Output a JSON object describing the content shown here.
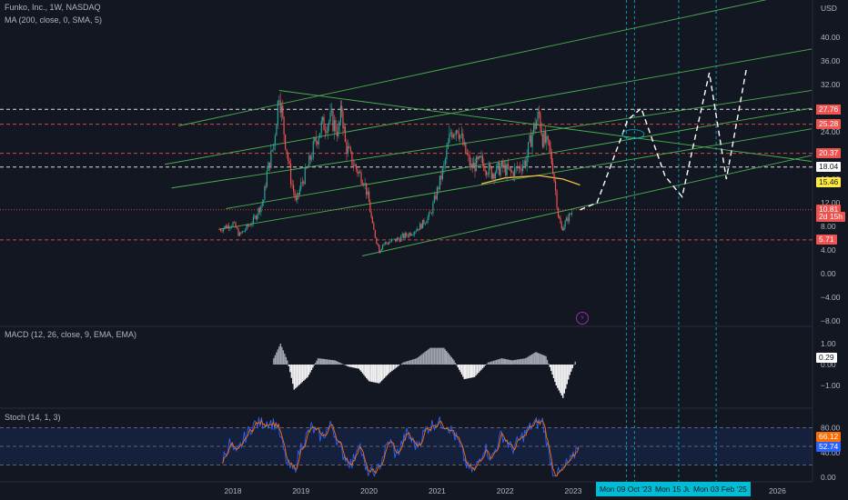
{
  "header": {
    "symbol_line": "Funko, Inc., 1W, NASDAQ",
    "ma_line": "MA (200, close, 0, SMA, 5)"
  },
  "currency": "USD",
  "macd": {
    "label": "MACD (12, 26, close, 9, EMA, EMA)",
    "value": "0.29"
  },
  "stoch": {
    "label": "Stoch (14, 1, 3)",
    "value_k": "66.12",
    "value_d": "52.74"
  },
  "colors": {
    "background": "#131722",
    "up": "#26a69a",
    "down": "#ef5350",
    "channel": "#4caf50",
    "ma": "#f5c242",
    "cyan": "#00bcd4",
    "stoch_k": "#2962ff",
    "stoch_d": "#ff6d00"
  },
  "price_tags": [
    {
      "label": "27.81",
      "value": 27.81,
      "bg": "#ffffff",
      "fg": "#131722"
    },
    {
      "label": "27.76",
      "value": 27.76,
      "bg": "#ef5350",
      "fg": "#ffffff"
    },
    {
      "label": "25.28",
      "value": 25.28,
      "bg": "#ef5350",
      "fg": "#ffffff"
    },
    {
      "label": "20.37",
      "value": 20.37,
      "bg": "#ef5350",
      "fg": "#ffffff"
    },
    {
      "label": "18.04",
      "value": 18.04,
      "bg": "#ffffff",
      "fg": "#131722"
    },
    {
      "label": "15.46",
      "value": 15.46,
      "bg": "#ffeb3b",
      "fg": "#131722"
    },
    {
      "label": "10.81",
      "value": 10.81,
      "bg": "#ef5350",
      "fg": "#ffffff"
    },
    {
      "label": "2d 15h",
      "value": 9.6,
      "bg": "#ef5350",
      "fg": "#ffffff"
    },
    {
      "label": "5.71",
      "value": 5.71,
      "bg": "#ef5350",
      "fg": "#ffffff"
    }
  ],
  "date_tags": [
    "Mon 09 Oct '23",
    "Mon 15 Ju",
    "Mon 03 Feb '25"
  ],
  "chart_data": {
    "type": "candlestick",
    "price_axis": {
      "min": -8,
      "max": 40,
      "ticks": [
        40,
        36,
        32,
        28,
        24,
        20,
        16,
        12,
        8,
        4,
        0,
        -4,
        -8
      ],
      "tick_labels": [
        "40.00",
        "36.00",
        "32.00",
        "28.00",
        "24.00",
        "20.00",
        "16.00",
        "12.00",
        "8.00",
        "4.00",
        "0.00",
        "−4.00",
        "−8.00"
      ]
    },
    "macd_axis": {
      "ticks": [
        1,
        0,
        -1
      ],
      "tick_labels": [
        "1.00",
        "0.00",
        "−1.00"
      ]
    },
    "stoch_axis": {
      "ticks": [
        80,
        40,
        0
      ],
      "tick_labels": [
        "80.00",
        "40.00",
        "0.00"
      ]
    },
    "time_axis": [
      "2018",
      "2019",
      "2020",
      "2021",
      "2022",
      "2023",
      "2024",
      "2025",
      "2026"
    ],
    "time_axis_years": [
      2018,
      2019,
      2020,
      2021,
      2022,
      2023,
      2024,
      2025,
      2026
    ],
    "price_path": [
      [
        2017.8,
        7.5
      ],
      [
        2018.0,
        8.5
      ],
      [
        2018.1,
        6.5
      ],
      [
        2018.3,
        9.0
      ],
      [
        2018.45,
        12.5
      ],
      [
        2018.5,
        17.0
      ],
      [
        2018.6,
        22.0
      ],
      [
        2018.68,
        31.0
      ],
      [
        2018.75,
        24.0
      ],
      [
        2018.85,
        16.0
      ],
      [
        2018.93,
        12.0
      ],
      [
        2019.0,
        15.0
      ],
      [
        2019.1,
        18.0
      ],
      [
        2019.2,
        22.0
      ],
      [
        2019.3,
        25.0
      ],
      [
        2019.45,
        26.0
      ],
      [
        2019.55,
        24.0
      ],
      [
        2019.6,
        28.0
      ],
      [
        2019.65,
        22.0
      ],
      [
        2019.75,
        19.0
      ],
      [
        2019.85,
        17.0
      ],
      [
        2019.92,
        16.0
      ],
      [
        2020.0,
        12.0
      ],
      [
        2020.05,
        8.0
      ],
      [
        2020.15,
        4.0
      ],
      [
        2020.2,
        5.0
      ],
      [
        2020.35,
        5.5
      ],
      [
        2020.55,
        6.5
      ],
      [
        2020.75,
        8.0
      ],
      [
        2020.9,
        10.0
      ],
      [
        2021.0,
        14.0
      ],
      [
        2021.1,
        18.0
      ],
      [
        2021.2,
        24.0
      ],
      [
        2021.3,
        25.0
      ],
      [
        2021.4,
        21.0
      ],
      [
        2021.5,
        18.0
      ],
      [
        2021.65,
        19.0
      ],
      [
        2021.8,
        17.0
      ],
      [
        2021.95,
        18.0
      ],
      [
        2022.1,
        17.0
      ],
      [
        2022.3,
        19.0
      ],
      [
        2022.4,
        24.0
      ],
      [
        2022.5,
        27.0
      ],
      [
        2022.55,
        23.0
      ],
      [
        2022.65,
        21.0
      ],
      [
        2022.7,
        18.0
      ],
      [
        2022.78,
        10.0
      ],
      [
        2022.83,
        7.5
      ],
      [
        2022.9,
        9.0
      ],
      [
        2023.0,
        10.8
      ]
    ],
    "ma_200": [
      [
        2021.65,
        15.2
      ],
      [
        2022.0,
        16.2
      ],
      [
        2022.5,
        16.6
      ],
      [
        2022.85,
        16.0
      ],
      [
        2023.1,
        15.0
      ]
    ],
    "horizontal_levels": [
      {
        "value": 27.81,
        "style": "white-dashed"
      },
      {
        "value": 25.28,
        "style": "red-dashed"
      },
      {
        "value": 20.37,
        "style": "red-dashed"
      },
      {
        "value": 18.04,
        "style": "white-dashed"
      },
      {
        "value": 10.81,
        "style": "red-dotted"
      },
      {
        "value": 5.71,
        "style": "red-dashed"
      }
    ],
    "channel_lines": [
      [
        [
          2017.8,
          7.5
        ],
        [
          2026.5,
          24.5
        ]
      ],
      [
        [
          2017.1,
          14.5
        ],
        [
          2026.5,
          31.0
        ]
      ],
      [
        [
          2017.9,
          11.0
        ],
        [
          2026.5,
          28.0
        ]
      ],
      [
        [
          2017.0,
          18.5
        ],
        [
          2026.5,
          38.0
        ]
      ],
      [
        [
          2017.2,
          25.0
        ],
        [
          2026.5,
          48.0
        ]
      ],
      [
        [
          2019.9,
          3.0
        ],
        [
          2026.5,
          20.0
        ]
      ]
    ],
    "descending_line": [
      [
        2018.68,
        31.0
      ],
      [
        2026.5,
        19.0
      ]
    ],
    "projection_path": [
      [
        2023.1,
        10.8
      ],
      [
        2023.35,
        12.0
      ],
      [
        2023.8,
        26.0
      ],
      [
        2024.0,
        28.0
      ],
      [
        2024.35,
        16.5
      ],
      [
        2024.6,
        13.0
      ],
      [
        2025.0,
        34.0
      ],
      [
        2025.25,
        16.0
      ],
      [
        2025.55,
        35.0
      ]
    ],
    "vertical_markers": [
      2023.78,
      2023.9,
      2024.55,
      2025.1
    ],
    "macd_hist": [
      [
        2018.6,
        0.3
      ],
      [
        2018.7,
        1.0
      ],
      [
        2018.8,
        0.2
      ],
      [
        2018.9,
        -1.2
      ],
      [
        2019.1,
        -0.6
      ],
      [
        2019.25,
        0.3
      ],
      [
        2019.5,
        0.2
      ],
      [
        2019.7,
        -0.1
      ],
      [
        2019.85,
        -0.2
      ],
      [
        2020.0,
        -0.8
      ],
      [
        2020.15,
        -0.9
      ],
      [
        2020.3,
        -0.4
      ],
      [
        2020.5,
        0.1
      ],
      [
        2020.7,
        0.3
      ],
      [
        2020.9,
        0.8
      ],
      [
        2021.1,
        0.8
      ],
      [
        2021.25,
        0.2
      ],
      [
        2021.4,
        -0.7
      ],
      [
        2021.55,
        -0.6
      ],
      [
        2021.75,
        0.1
      ],
      [
        2021.95,
        0.3
      ],
      [
        2022.1,
        0.2
      ],
      [
        2022.3,
        0.3
      ],
      [
        2022.45,
        0.6
      ],
      [
        2022.6,
        0.4
      ],
      [
        2022.75,
        -1.0
      ],
      [
        2022.85,
        -1.6
      ],
      [
        2022.95,
        -0.5
      ],
      [
        2023.05,
        0.3
      ]
    ],
    "stoch_k": [
      [
        2017.85,
        30
      ],
      [
        2017.95,
        55
      ],
      [
        2018.05,
        35
      ],
      [
        2018.15,
        60
      ],
      [
        2018.3,
        85
      ],
      [
        2018.5,
        90
      ],
      [
        2018.65,
        85
      ],
      [
        2018.8,
        20
      ],
      [
        2018.9,
        10
      ],
      [
        2019.0,
        50
      ],
      [
        2019.15,
        80
      ],
      [
        2019.3,
        65
      ],
      [
        2019.45,
        85
      ],
      [
        2019.6,
        40
      ],
      [
        2019.75,
        20
      ],
      [
        2019.85,
        60
      ],
      [
        2019.95,
        10
      ],
      [
        2020.1,
        5
      ],
      [
        2020.3,
        60
      ],
      [
        2020.4,
        35
      ],
      [
        2020.55,
        70
      ],
      [
        2020.7,
        50
      ],
      [
        2020.85,
        80
      ],
      [
        2021.0,
        90
      ],
      [
        2021.15,
        85
      ],
      [
        2021.3,
        60
      ],
      [
        2021.45,
        15
      ],
      [
        2021.55,
        10
      ],
      [
        2021.7,
        50
      ],
      [
        2021.8,
        30
      ],
      [
        2021.95,
        70
      ],
      [
        2022.1,
        45
      ],
      [
        2022.25,
        65
      ],
      [
        2022.4,
        85
      ],
      [
        2022.55,
        90
      ],
      [
        2022.7,
        10
      ],
      [
        2022.8,
        5
      ],
      [
        2022.9,
        20
      ],
      [
        2023.0,
        30
      ],
      [
        2023.1,
        66
      ]
    ]
  }
}
